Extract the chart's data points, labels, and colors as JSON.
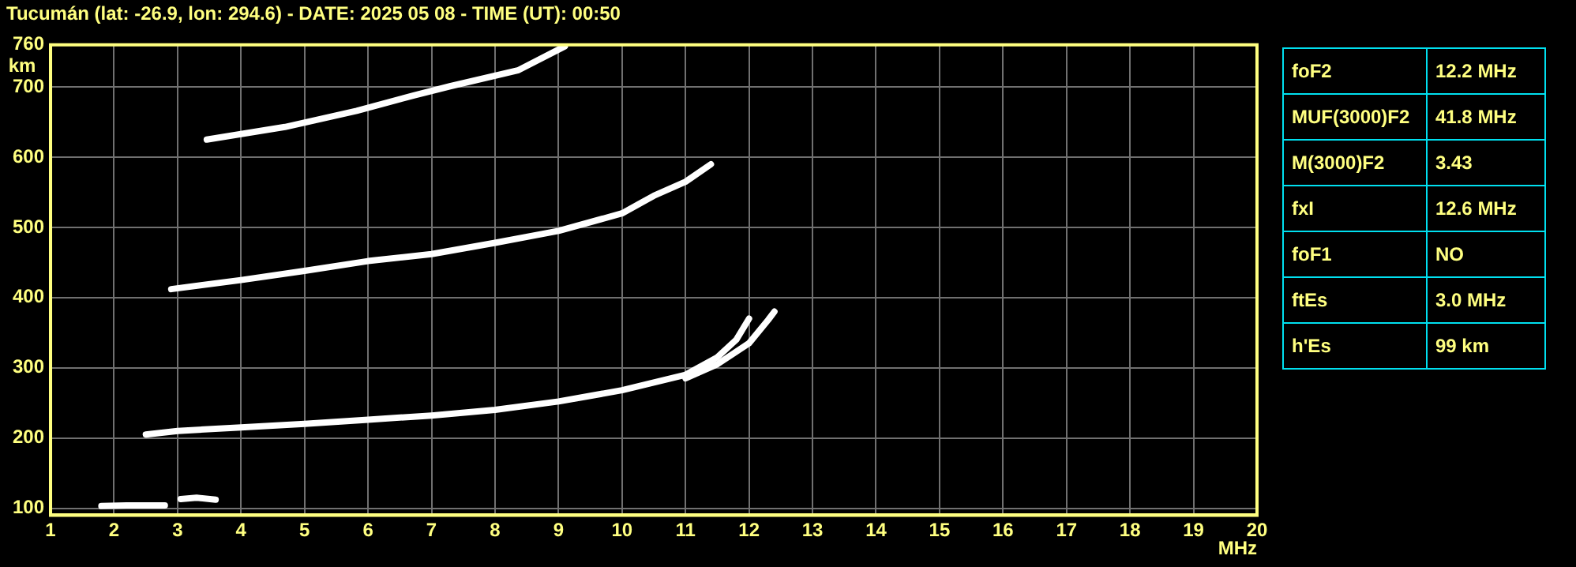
{
  "chart_data": [
    {
      "type": "line",
      "title": "Tucumán (lat: -26.9, lon: 294.6) - DATE: 2025 05 08 - TIME (UT): 00:50",
      "xlabel": "MHz",
      "ylabel": "km",
      "xlim": [
        1,
        20
      ],
      "xticks": [
        1,
        2,
        3,
        4,
        5,
        6,
        7,
        8,
        9,
        10,
        11,
        12,
        13,
        14,
        15,
        16,
        17,
        18,
        19,
        20
      ],
      "ylim": [
        90,
        760
      ],
      "yticks": [
        100,
        200,
        300,
        400,
        500,
        600,
        700,
        760
      ],
      "grid": true,
      "legend": false,
      "marker": "none",
      "line_style": "solid",
      "series": [
        {
          "color": "#ffffff",
          "x": [
            1.8,
            2.2,
            2.8
          ],
          "values": [
            103,
            104,
            104
          ]
        },
        {
          "color": "#ffffff",
          "x": [
            3.05,
            3.3,
            3.6
          ],
          "values": [
            113,
            115,
            112
          ]
        },
        {
          "color": "#ffffff",
          "x": [
            2.5,
            3,
            4,
            5,
            6,
            7,
            8,
            9,
            10,
            11,
            11.5,
            11.8,
            12
          ],
          "values": [
            205,
            210,
            215,
            220,
            226,
            232,
            240,
            252,
            268,
            290,
            315,
            340,
            370
          ]
        },
        {
          "color": "#ffffff",
          "x": [
            11,
            11.5,
            12,
            12.3,
            12.4
          ],
          "values": [
            285,
            305,
            335,
            368,
            380
          ]
        },
        {
          "color": "#ffffff",
          "x": [
            2.9,
            4,
            5,
            6,
            7,
            8,
            9,
            10,
            10.5,
            11,
            11.4
          ],
          "values": [
            412,
            425,
            438,
            452,
            462,
            478,
            495,
            520,
            545,
            565,
            590
          ]
        },
        {
          "color": "#ffffff",
          "x": [
            3.46,
            4.69,
            5.82,
            6.72,
            7.29,
            8.37,
            9.1
          ],
          "values": [
            625,
            643,
            666,
            688,
            701,
            724,
            758
          ]
        }
      ]
    },
    {
      "type": "other",
      "annotations": [
        "foF2",
        "12.2 MHz",
        "MUF(3000)F2",
        "41.8 MHz",
        "M(3000)F2",
        "3.43",
        "fxI",
        "12.6 MHz",
        "foF1",
        "NO",
        "ftEs",
        "3.0 MHz",
        "h'Es",
        "99 km"
      ]
    }
  ]
}
